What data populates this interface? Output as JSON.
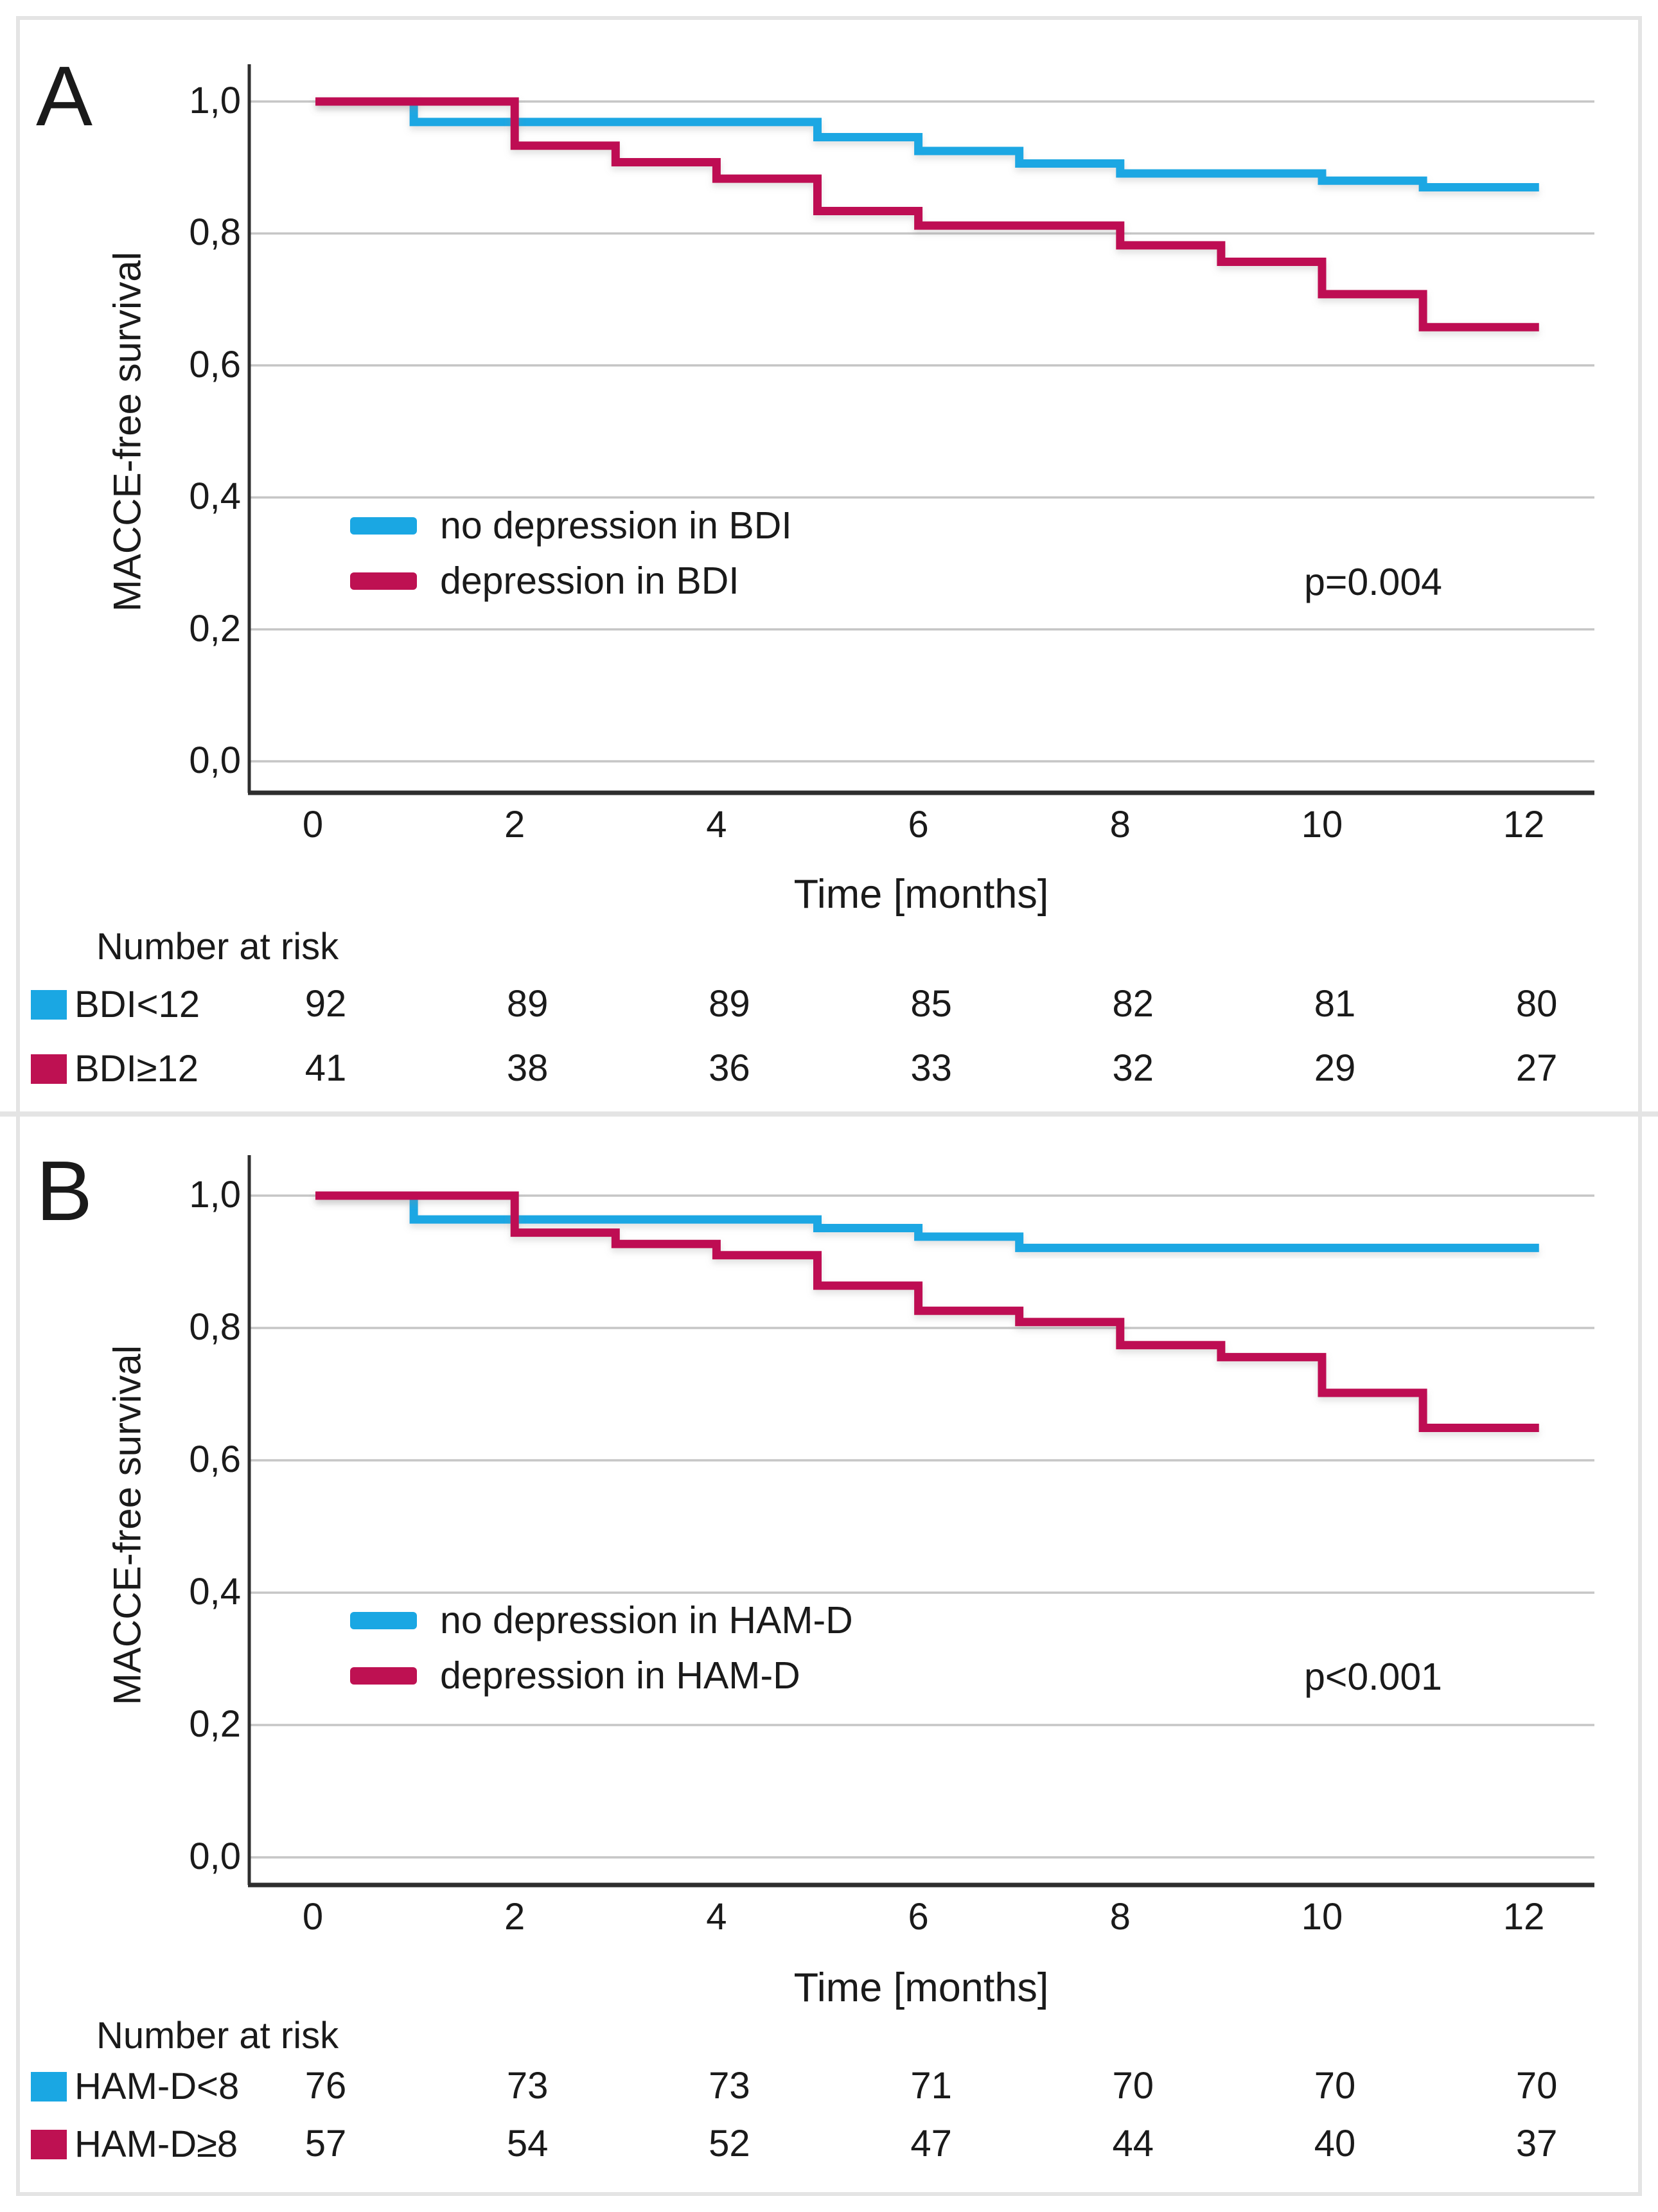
{
  "figure_colors": {
    "blue": "#1AA7E3",
    "crimson": "#BE1152",
    "grid": "#c6c6c6",
    "axis": "#2e2e2e",
    "text": "#1a1a1a",
    "frame": "#e4e4e4"
  },
  "chart_data": [
    {
      "type": "line",
      "subtype": "kaplan-meier-step",
      "panel_label": "A",
      "xlabel": "Time [months]",
      "ylabel": "MACCE-free survival",
      "xlim": [
        0,
        12
      ],
      "ylim": [
        0.0,
        1.0
      ],
      "grid": true,
      "x_ticks": [
        "0",
        "2",
        "4",
        "6",
        "8",
        "10",
        "12"
      ],
      "y_ticks": [
        "1,0",
        "0,8",
        "0,6",
        "0,4",
        "0,2",
        "0,0"
      ],
      "p_value_label": "p=0.004",
      "legend_position": "inside-left-middle",
      "legend": [
        {
          "label": "no depression in BDI",
          "color_key": "blue"
        },
        {
          "label": "depression in BDI",
          "color_key": "crimson"
        }
      ],
      "series": [
        {
          "name": "no depression in BDI",
          "color_key": "blue",
          "end_x": 12.15,
          "steps": [
            [
              0,
              1.0
            ],
            [
              1,
              0.969
            ],
            [
              5,
              0.946
            ],
            [
              6,
              0.925
            ],
            [
              7,
              0.906
            ],
            [
              8,
              0.891
            ],
            [
              10,
              0.88
            ],
            [
              11,
              0.87
            ]
          ]
        },
        {
          "name": "depression in BDI",
          "color_key": "crimson",
          "end_x": 12.15,
          "steps": [
            [
              0,
              1.0
            ],
            [
              2,
              0.933
            ],
            [
              3,
              0.908
            ],
            [
              4,
              0.883
            ],
            [
              5,
              0.834
            ],
            [
              6,
              0.812
            ],
            [
              8,
              0.782
            ],
            [
              9,
              0.757
            ],
            [
              10,
              0.708
            ],
            [
              11,
              0.658
            ]
          ]
        }
      ],
      "risk_table": {
        "title": "Number at risk",
        "time_points": [
          0,
          2,
          4,
          6,
          8,
          10,
          12
        ],
        "rows": [
          {
            "label": "BDI<12",
            "color_key": "blue",
            "counts": [
              "92",
              "89",
              "89",
              "85",
              "82",
              "81",
              "80"
            ]
          },
          {
            "label": "BDI≥12",
            "color_key": "crimson",
            "counts": [
              "41",
              "38",
              "36",
              "33",
              "32",
              "29",
              "27"
            ]
          }
        ]
      }
    },
    {
      "type": "line",
      "subtype": "kaplan-meier-step",
      "panel_label": "B",
      "xlabel": "Time [months]",
      "ylabel": "MACCE-free survival",
      "xlim": [
        0,
        12
      ],
      "ylim": [
        0.0,
        1.0
      ],
      "grid": true,
      "x_ticks": [
        "0",
        "2",
        "4",
        "6",
        "8",
        "10",
        "12"
      ],
      "y_ticks": [
        "1,0",
        "0,8",
        "0,6",
        "0,4",
        "0,2",
        "0,0"
      ],
      "p_value_label": "p<0.001",
      "legend_position": "inside-left-middle",
      "legend": [
        {
          "label": "no depression in HAM-D",
          "color_key": "blue"
        },
        {
          "label": "depression in HAM-D",
          "color_key": "crimson"
        }
      ],
      "series": [
        {
          "name": "no depression in HAM-D",
          "color_key": "blue",
          "end_x": 12.15,
          "steps": [
            [
              0,
              1.0
            ],
            [
              1,
              0.964
            ],
            [
              5,
              0.951
            ],
            [
              6,
              0.938
            ],
            [
              7,
              0.921
            ]
          ]
        },
        {
          "name": "depression in HAM-D",
          "color_key": "crimson",
          "end_x": 12.15,
          "steps": [
            [
              0,
              1.0
            ],
            [
              2,
              0.944
            ],
            [
              3,
              0.927
            ],
            [
              4,
              0.91
            ],
            [
              5,
              0.864
            ],
            [
              6,
              0.826
            ],
            [
              7,
              0.809
            ],
            [
              8,
              0.774
            ],
            [
              9,
              0.756
            ],
            [
              10,
              0.702
            ],
            [
              11,
              0.649
            ]
          ]
        }
      ],
      "risk_table": {
        "title": "Number at risk",
        "time_points": [
          0,
          2,
          4,
          6,
          8,
          10,
          12
        ],
        "rows": [
          {
            "label": "HAM-D<8",
            "color_key": "blue",
            "counts": [
              "76",
              "73",
              "73",
              "71",
              "70",
              "70",
              "70"
            ]
          },
          {
            "label": "HAM-D≥8",
            "color_key": "crimson",
            "counts": [
              "57",
              "54",
              "52",
              "47",
              "44",
              "40",
              "37"
            ]
          }
        ]
      }
    }
  ]
}
